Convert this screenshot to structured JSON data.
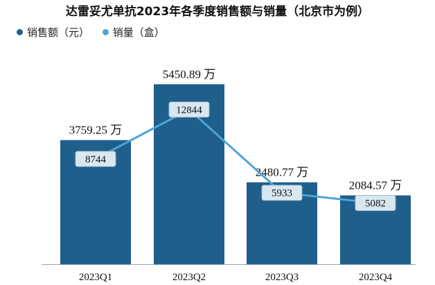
{
  "chart_data": {
    "type": "bar",
    "title": "达雷妥尤单抗2023年各季度销售额与销量（北京市为例）",
    "categories": [
      "2023Q1",
      "2023Q2",
      "2023Q3",
      "2023Q4"
    ],
    "bar_unit": "万",
    "series": [
      {
        "name": "销售额（元）",
        "kind": "bar",
        "color": "#1f5f8b",
        "values": [
          3759.25,
          5450.89,
          2480.77,
          2084.57
        ]
      },
      {
        "name": "销量（盒）",
        "kind": "line",
        "color": "#4ea3d9",
        "values": [
          8744,
          12844,
          5933,
          5082
        ]
      }
    ],
    "bar_ylim": [
      0,
      6200
    ],
    "line_ylim": [
      0,
      17000
    ],
    "grid": false,
    "legend_position": "top-left"
  }
}
